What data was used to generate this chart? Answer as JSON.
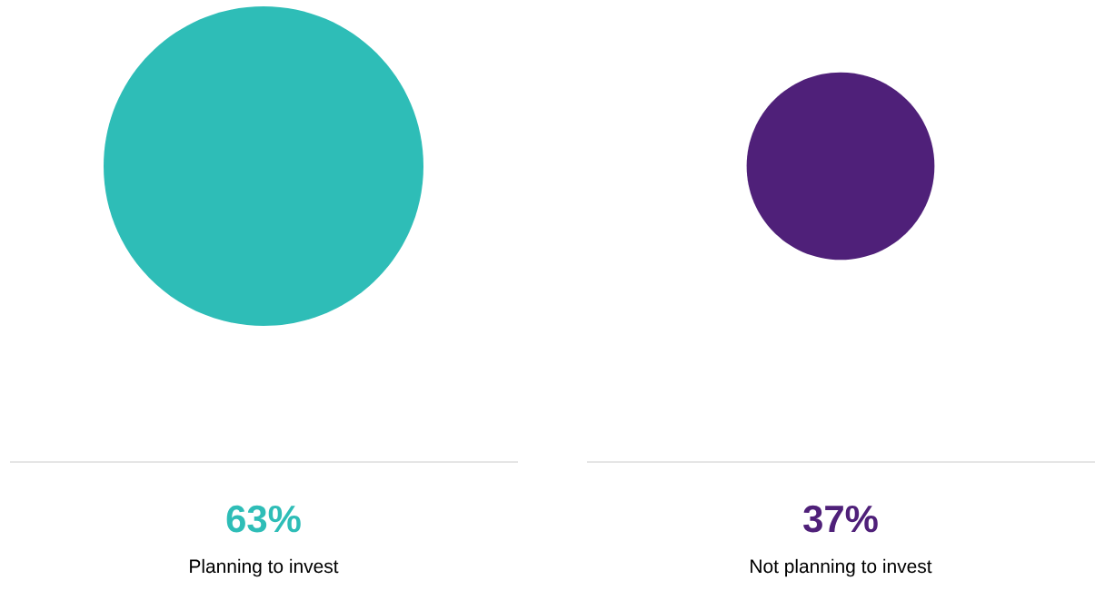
{
  "chart_data": {
    "type": "other",
    "categories": [
      "Planning to invest",
      "Not planning to invest"
    ],
    "values": [
      63,
      37
    ],
    "value_labels": [
      "63%",
      "37%"
    ],
    "colors": [
      "#2ebdb7",
      "#4f2079"
    ]
  }
}
